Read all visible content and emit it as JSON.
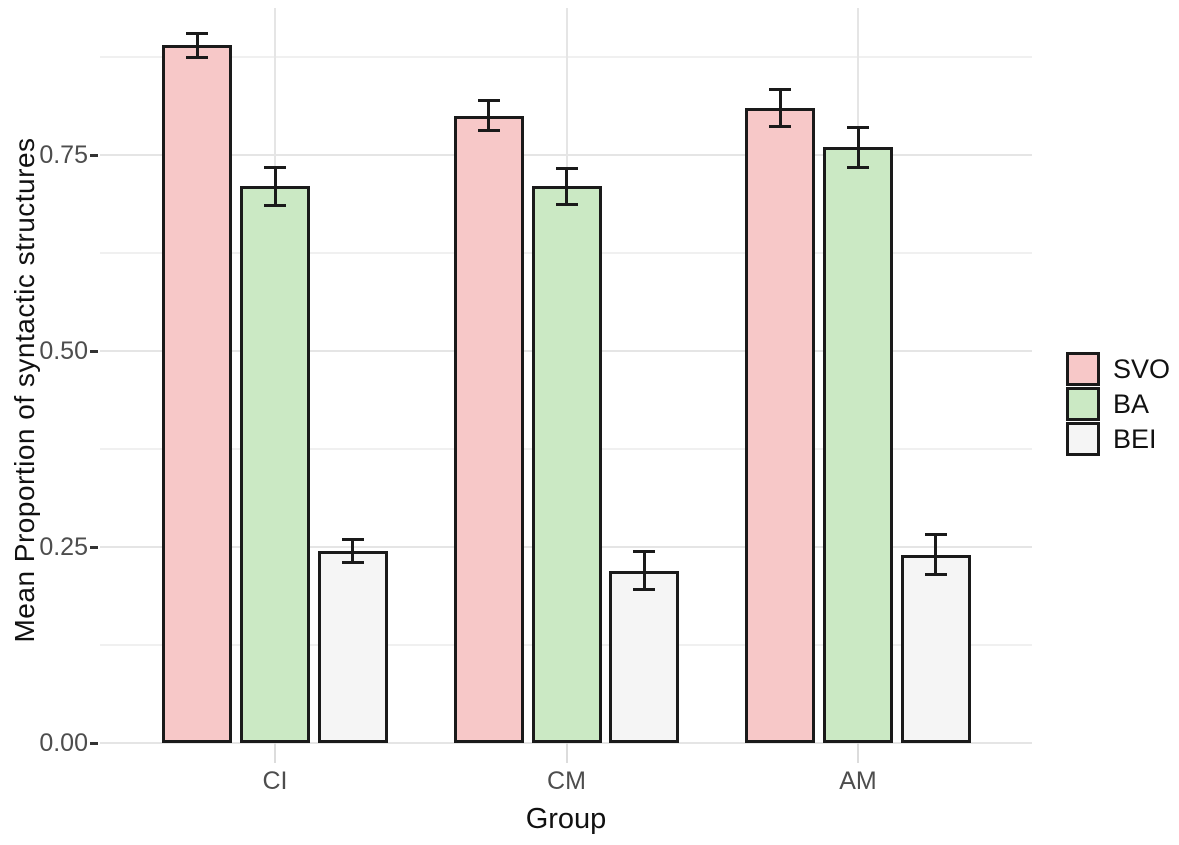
{
  "figure": {
    "background": "#ffffff"
  },
  "chart_data": {
    "type": "bar",
    "title": "",
    "xlabel": "Group",
    "ylabel": "Mean Proportion of syntactic structures",
    "categories": [
      "CI",
      "CM",
      "AM"
    ],
    "series": [
      {
        "name": "SVO",
        "color": "#f7c8c8",
        "values": [
          0.89,
          0.8,
          0.81
        ],
        "error_bars": [
          0.016,
          0.02,
          0.024
        ]
      },
      {
        "name": "BA",
        "color": "#cbe9c4",
        "values": [
          0.71,
          0.71,
          0.76
        ],
        "error_bars": [
          0.025,
          0.024,
          0.026
        ]
      },
      {
        "name": "BEI",
        "color": "#f5f5f5",
        "values": [
          0.245,
          0.22,
          0.24
        ],
        "error_bars": [
          0.015,
          0.025,
          0.026
        ]
      }
    ],
    "ylim": [
      0,
      0.9375
    ],
    "yticks": [
      "0.00",
      "0.25",
      "0.50",
      "0.75"
    ],
    "ytick_values": [
      0,
      0.25,
      0.5,
      0.75
    ],
    "minor_gridline_values": [
      0.125,
      0.375,
      0.625,
      0.875
    ],
    "grid": "horizontal major+minor, vertical lines at category centers",
    "legend_position": "right-middle",
    "bar_border_color": "#1a1a1a",
    "error_bar_color": "#1a1a1a"
  },
  "legend": {
    "items": [
      {
        "label": "SVO",
        "color": "#f7c8c8"
      },
      {
        "label": "BA",
        "color": "#cbe9c4"
      },
      {
        "label": "BEI",
        "color": "#f5f5f5"
      }
    ]
  },
  "colors": {
    "major_grid": "#e5e5e5",
    "minor_grid": "#f0f0f0",
    "tick_label": "#4d4d4d",
    "axis_title": "#111111"
  }
}
